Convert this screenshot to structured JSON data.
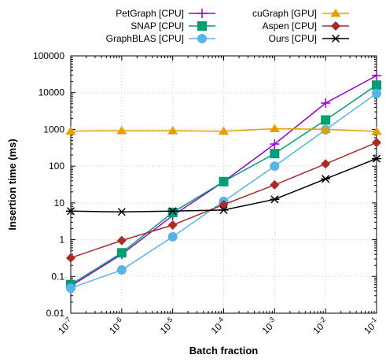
{
  "chart_data": {
    "type": "line",
    "xlabel": "Batch fraction",
    "ylabel": "Insertion time (ms)",
    "xscale": "log",
    "yscale": "log",
    "xlim": [
      1e-07,
      0.1
    ],
    "ylim": [
      0.01,
      100000
    ],
    "grid": true,
    "legend_position": "top",
    "x": [
      1e-07,
      1e-06,
      1e-05,
      0.0001,
      0.001,
      0.01,
      0.1
    ],
    "x_tick_labels": [
      {
        "base": "10",
        "exp": "-7"
      },
      {
        "base": "10",
        "exp": "-6"
      },
      {
        "base": "10",
        "exp": "-5"
      },
      {
        "base": "10",
        "exp": "-4"
      },
      {
        "base": "10",
        "exp": "-3"
      },
      {
        "base": "10",
        "exp": "-2"
      },
      {
        "base": "10",
        "exp": "-1"
      }
    ],
    "y_tick_labels": [
      "0.01",
      "0.1",
      "1",
      "10",
      "100",
      "1000",
      "10000",
      "100000"
    ],
    "y_tick_values": [
      0.01,
      0.1,
      1,
      10,
      100,
      1000,
      10000,
      100000
    ],
    "series": [
      {
        "name": "PetGraph [CPU]",
        "color": "#9400d3",
        "marker": "plus",
        "values": [
          0.055,
          0.4,
          4.5,
          38,
          400,
          5200,
          29000
        ]
      },
      {
        "name": "SNAP [CPU]",
        "color": "#009e73",
        "marker": "square",
        "values": [
          0.06,
          0.44,
          5.5,
          38,
          220,
          1800,
          16000
        ]
      },
      {
        "name": "GraphBLAS [CPU]",
        "color": "#56b4e9",
        "marker": "circle",
        "values": [
          0.048,
          0.15,
          1.2,
          11,
          100,
          980,
          9500
        ]
      },
      {
        "name": "cuGraph [GPU]",
        "color": "#e69f00",
        "marker": "triangle",
        "values": [
          900,
          920,
          920,
          890,
          1050,
          1000,
          880
        ]
      },
      {
        "name": "Aspen [CPU]",
        "color": "#aa2a2a",
        "marker": "diamond",
        "values": [
          0.32,
          0.95,
          2.5,
          9,
          31,
          115,
          440
        ]
      },
      {
        "name": "Ours [CPU]",
        "color": "#000000",
        "marker": "asterisk",
        "values": [
          6,
          5.7,
          6,
          6.4,
          12.5,
          45,
          160
        ]
      }
    ]
  }
}
